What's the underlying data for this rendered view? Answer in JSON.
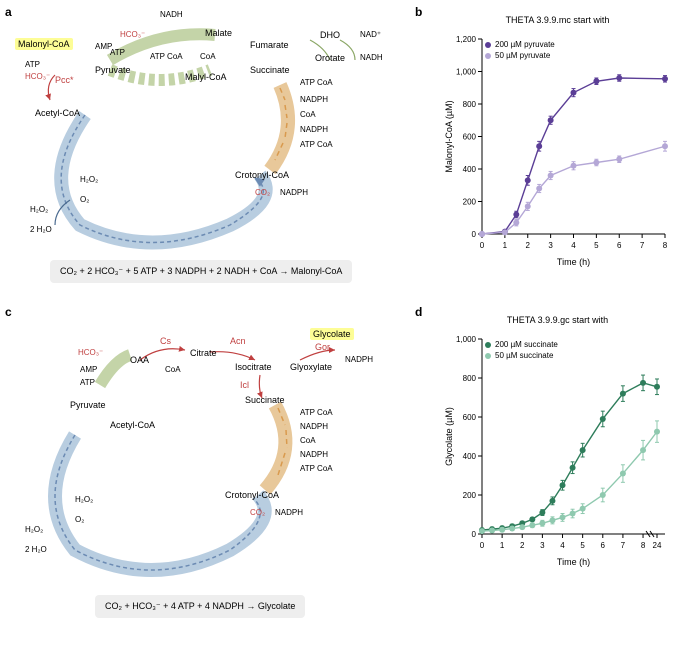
{
  "panel_a": {
    "label": "a",
    "product": "Malonyl-CoA",
    "metabolites": {
      "acetyl_coa": "Acetyl-CoA",
      "pyruvate": "Pyruvate",
      "malate": "Malate",
      "fumarate": "Fumarate",
      "malyl_coa": "Malyl-CoA",
      "succinate": "Succinate",
      "crotonyl_coa": "Crotonyl-CoA",
      "dho": "DHO",
      "orotate": "Orotate"
    },
    "enzymes": {
      "pcc": "Pcc*"
    },
    "cofactors": {
      "nadh": "NADH",
      "atp": "ATP",
      "co2": "CO₂",
      "nadph": "NADPH",
      "amp": "AMP",
      "hco3": "HCO₃⁻",
      "coa": "CoA",
      "atp_coa": "ATP CoA",
      "h2o2": "H₂O₂",
      "o2": "O₂",
      "h2o": "2 H₂O",
      "nad": "NAD⁺"
    },
    "equation": "CO₂ + 2 HCO₃⁻ + 5 ATP + 3 NADPH + 2 NADH + CoA → Malonyl-CoA"
  },
  "panel_b": {
    "label": "b",
    "title": "THETA 3.9.9.mc start with",
    "legend": [
      {
        "label": "200 µM pyruvate",
        "color": "#5b3e96"
      },
      {
        "label": "50 µM pyruvate",
        "color": "#b4a7d6"
      }
    ],
    "xlabel": "Time (h)",
    "ylabel": "Malonyl-CoA (µM)",
    "xlim": [
      0,
      8
    ],
    "ylim": [
      0,
      1200
    ],
    "xticks": [
      0,
      1,
      2,
      3,
      4,
      5,
      6,
      7,
      8
    ],
    "yticks": [
      0,
      200,
      400,
      600,
      800,
      1000,
      1200
    ],
    "series": [
      {
        "color": "#5b3e96",
        "x": [
          0,
          1,
          1.5,
          2,
          2.5,
          3,
          4,
          5,
          6,
          8
        ],
        "y": [
          0,
          15,
          120,
          330,
          540,
          700,
          870,
          940,
          960,
          955
        ],
        "err": [
          0,
          10,
          20,
          30,
          30,
          25,
          25,
          20,
          20,
          20
        ]
      },
      {
        "color": "#b4a7d6",
        "x": [
          0,
          1,
          1.5,
          2,
          2.5,
          3,
          4,
          5,
          6,
          8
        ],
        "y": [
          0,
          10,
          70,
          170,
          280,
          360,
          420,
          440,
          460,
          540
        ],
        "err": [
          0,
          10,
          20,
          25,
          25,
          25,
          25,
          20,
          20,
          30
        ]
      }
    ],
    "marker": "circle",
    "marker_size": 3,
    "linewidth": 1.4
  },
  "panel_c": {
    "label": "c",
    "product": "Glycolate",
    "metabolites": {
      "pyruvate": "Pyruvate",
      "oaa": "OAA",
      "citrate": "Citrate",
      "isocitrate": "Isocitrate",
      "glyoxylate": "Glyoxylate",
      "succinate": "Succinate",
      "acetyl_coa": "Acetyl-CoA",
      "crotonyl_coa": "Crotonyl-CoA"
    },
    "enzymes": {
      "cs": "Cs",
      "acn": "Acn",
      "icl": "Icl",
      "gor": "Gor"
    },
    "cofactors": {
      "hco3": "HCO₃⁻",
      "amp": "AMP",
      "atp": "ATP",
      "coa": "CoA",
      "nadph": "NADPH",
      "co2": "CO₂",
      "atp_coa": "ATP CoA",
      "h2o2": "H₂O₂",
      "o2": "O₂",
      "h2o": "2 H₂O"
    },
    "equation": "CO₂ + HCO₃⁻ + 4 ATP + 4 NADPH → Glycolate"
  },
  "panel_d": {
    "label": "d",
    "title": "THETA 3.9.9.gc start with",
    "legend": [
      {
        "label": "200 µM succinate",
        "color": "#2e7d5b"
      },
      {
        "label": "50 µM succinate",
        "color": "#8fc9af"
      }
    ],
    "xlabel": "Time (h)",
    "ylabel": "Glycolate (µM)",
    "xlim": [
      0,
      24
    ],
    "ylim": [
      0,
      1000
    ],
    "xticks_main": [
      0,
      1,
      2,
      3,
      4,
      5,
      6,
      7,
      8
    ],
    "xticks_break": [
      24
    ],
    "yticks": [
      0,
      200,
      400,
      600,
      800,
      1000
    ],
    "series": [
      {
        "color": "#2e7d5b",
        "x": [
          0,
          0.5,
          1,
          1.5,
          2,
          2.5,
          3,
          3.5,
          4,
          4.5,
          5,
          6,
          7,
          8,
          24
        ],
        "y": [
          20,
          25,
          30,
          40,
          55,
          75,
          110,
          170,
          250,
          340,
          430,
          590,
          720,
          775,
          755
        ],
        "err": [
          10,
          10,
          10,
          10,
          10,
          10,
          15,
          20,
          25,
          30,
          35,
          40,
          40,
          40,
          40
        ]
      },
      {
        "color": "#8fc9af",
        "x": [
          0,
          0.5,
          1,
          1.5,
          2,
          2.5,
          3,
          3.5,
          4,
          4.5,
          5,
          6,
          7,
          8,
          24
        ],
        "y": [
          15,
          18,
          22,
          28,
          35,
          45,
          55,
          70,
          85,
          105,
          130,
          200,
          310,
          430,
          525
        ],
        "err": [
          10,
          10,
          10,
          10,
          10,
          12,
          15,
          18,
          20,
          22,
          25,
          35,
          45,
          50,
          55
        ]
      }
    ],
    "marker": "circle",
    "marker_size": 3,
    "linewidth": 1.4,
    "axis_break": true
  },
  "colors": {
    "cycle_blue": "#9db9d4",
    "arrow_green": "#8ba766",
    "arrow_orange": "#d99a4e",
    "dashed_blue": "#6c8bb3",
    "red": "#c04040",
    "highlight": "#fdfd96",
    "grid": "#cccccc",
    "axis": "#000000"
  },
  "fontsize": {
    "label": 12,
    "metabolite": 9,
    "cofactor": 8,
    "axis": 9,
    "title": 9
  }
}
